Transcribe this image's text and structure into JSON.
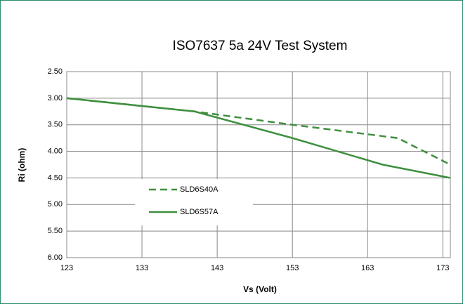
{
  "chart_data": {
    "type": "line",
    "title": "ISO7637 5a 24V Test System",
    "x_label": "Vs (Volt)",
    "y_label": "Ri (ohm)",
    "xlim": [
      123,
      174
    ],
    "xticks": [
      123,
      133,
      143,
      153,
      163,
      173
    ],
    "ylim": [
      2.5,
      6.0
    ],
    "y_inverted": true,
    "yticks": [
      {
        "value": 2.5,
        "label": "2.50"
      },
      {
        "value": 3.0,
        "label": "3.00"
      },
      {
        "value": 3.5,
        "label": "3.50"
      },
      {
        "value": 4.0,
        "label": "4.00"
      },
      {
        "value": 4.5,
        "label": "4.50"
      },
      {
        "value": 5.0,
        "label": "5.00"
      },
      {
        "value": 5.5,
        "label": "5.50"
      },
      {
        "value": 6.0,
        "label": "6.00"
      }
    ],
    "grid": true,
    "series": [
      {
        "name": "SLD6S40A",
        "color": "#3f8f3f",
        "dashed": true,
        "x": [
          123,
          140,
          153,
          167,
          174
        ],
        "values": [
          3.0,
          3.25,
          3.5,
          3.75,
          4.25
        ]
      },
      {
        "name": "SLD6S57A",
        "color": "#3f8f3f",
        "dashed": false,
        "x": [
          123,
          140,
          153,
          165,
          174
        ],
        "values": [
          3.0,
          3.25,
          3.75,
          4.25,
          4.5
        ]
      }
    ]
  }
}
